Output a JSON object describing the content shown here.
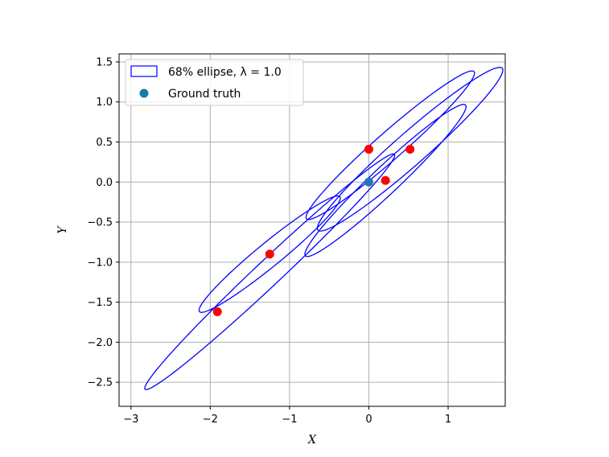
{
  "chart_data": {
    "type": "scatter",
    "xlabel": "X",
    "ylabel": "Y",
    "xlim": [
      -3.15,
      1.72
    ],
    "ylim": [
      -2.8,
      1.6
    ],
    "xticks": [
      -3,
      -2,
      -1,
      0,
      1
    ],
    "yticks": [
      -2.5,
      -2.0,
      -1.5,
      -1.0,
      -0.5,
      0.0,
      0.5,
      1.0,
      1.5
    ],
    "xtick_labels": [
      "−3",
      "−2",
      "−1",
      "0",
      "1"
    ],
    "ytick_labels": [
      "−2.5",
      "−2.0",
      "−1.5",
      "−1.0",
      "−0.5",
      "0.0",
      "0.5",
      "1.0",
      "1.5"
    ],
    "grid": true,
    "legend": {
      "placement": "upper-left",
      "entries": [
        {
          "label": "68% ellipse, λ = 1.0",
          "kind": "ellipse-patch",
          "color": "#0000ff"
        },
        {
          "label": "Ground truth",
          "kind": "marker",
          "color": "#1f77b4"
        }
      ]
    },
    "points": [
      {
        "x": 0.0,
        "y": 0.41,
        "color": "#ff0000"
      },
      {
        "x": 0.52,
        "y": 0.41,
        "color": "#ff0000"
      },
      {
        "x": 0.21,
        "y": 0.02,
        "color": "#ff0000"
      },
      {
        "x": -1.25,
        "y": -0.9,
        "color": "#ff0000"
      },
      {
        "x": -1.91,
        "y": -1.62,
        "color": "#ff0000"
      }
    ],
    "ground_truth": {
      "x": 0.0,
      "y": 0.0,
      "color": "#1f77b4"
    },
    "ellipses": [
      {
        "cx": 0.27,
        "cy": 0.46,
        "a": 1.4,
        "b": 0.17,
        "angle_deg": 41.0,
        "color": "#0000ff"
      },
      {
        "cx": 0.52,
        "cy": 0.41,
        "a": 1.54,
        "b": 0.2,
        "angle_deg": 41.0,
        "color": "#0000ff"
      },
      {
        "cx": 0.21,
        "cy": 0.02,
        "a": 1.38,
        "b": 0.17,
        "angle_deg": 43.0,
        "color": "#0000ff"
      },
      {
        "cx": -1.25,
        "cy": -0.9,
        "a": 1.14,
        "b": 0.15,
        "angle_deg": 39.0,
        "color": "#0000ff"
      },
      {
        "cx": -1.25,
        "cy": -1.12,
        "a": 2.15,
        "b": 0.16,
        "angle_deg": 43.0,
        "color": "#0000ff"
      }
    ]
  }
}
